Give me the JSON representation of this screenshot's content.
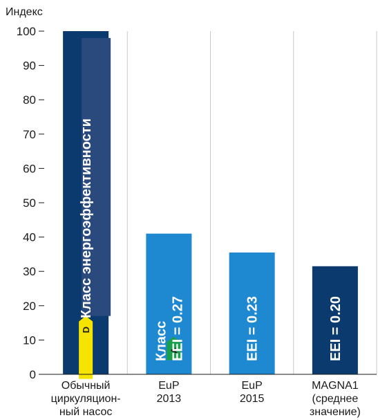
{
  "chart_data": {
    "type": "bar",
    "ylabel": "Индекс",
    "ylim": [
      0,
      100
    ],
    "yticks": [
      0,
      10,
      20,
      30,
      40,
      50,
      60,
      70,
      80,
      90,
      100
    ],
    "grid": "vertical",
    "categories": [
      [
        "Обычный",
        "циркуляцион-",
        "ный насос"
      ],
      [
        "EuP",
        "2013"
      ],
      [
        "EuP",
        "2015"
      ],
      [
        "MAGNA1",
        "(среднее",
        "значение)"
      ]
    ],
    "values": [
      100,
      41,
      35.5,
      31.5
    ],
    "bar_colors": [
      "#0a3a6e",
      "#1e88d0",
      "#1e88d0",
      "#0a3a6e"
    ],
    "bar_annotations": [
      [
        "Класс энергоэффективности"
      ],
      [
        "Класс",
        "EEI = 0.27"
      ],
      [
        "EEI = 0.23"
      ],
      [
        "EEI = 0.20"
      ]
    ],
    "class_badges": [
      {
        "bar": 0,
        "letter": "D",
        "color": "#f5e400",
        "top_value": 17
      },
      {
        "bar": 1,
        "letter": "A",
        "color": "#1aa04a",
        "top_value": 11
      }
    ],
    "inner_band": {
      "bar": 0,
      "from": 17,
      "to": 98,
      "color": "#2a4a7e"
    }
  }
}
